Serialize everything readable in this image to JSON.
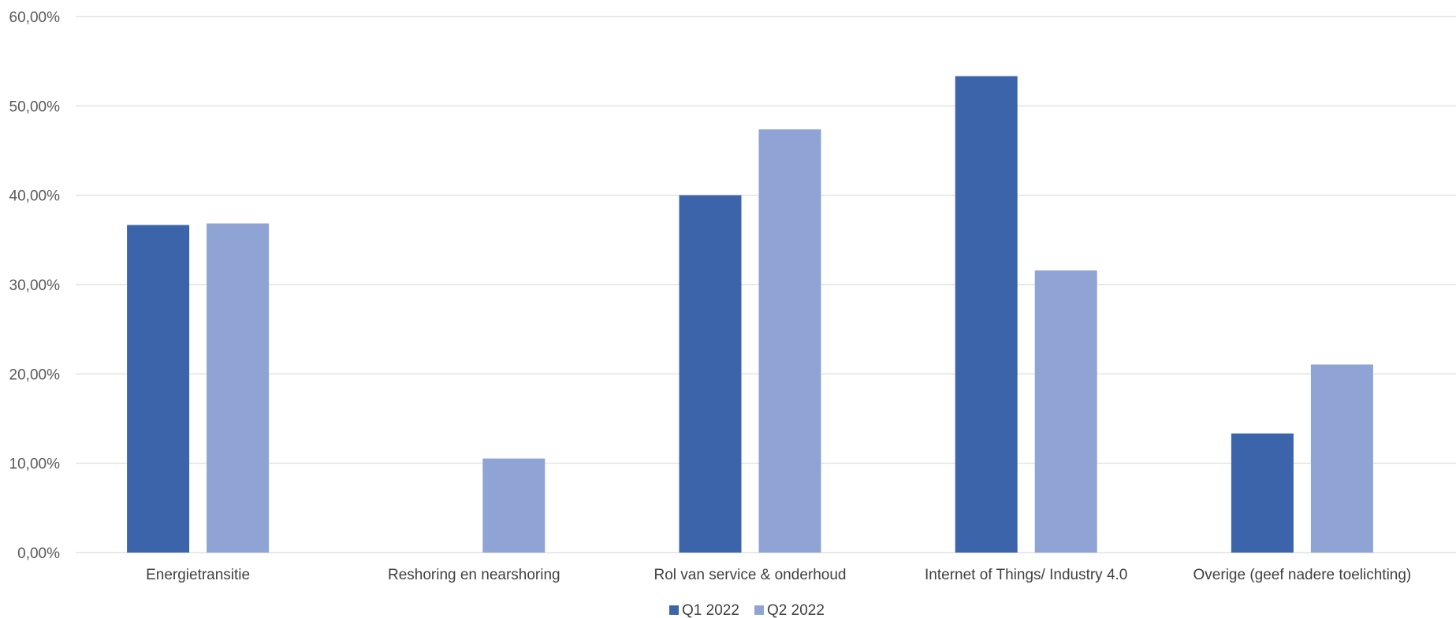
{
  "chart_data": {
    "type": "bar",
    "title": "",
    "xlabel": "",
    "ylabel": "",
    "ylim": [
      0,
      0.6
    ],
    "yticks": [
      {
        "value": 0.0,
        "label": "0,00%"
      },
      {
        "value": 0.1,
        "label": "10,00%"
      },
      {
        "value": 0.2,
        "label": "20,00%"
      },
      {
        "value": 0.3,
        "label": "30,00%"
      },
      {
        "value": 0.4,
        "label": "40,00%"
      },
      {
        "value": 0.5,
        "label": "50,00%"
      },
      {
        "value": 0.6,
        "label": "60,00%"
      }
    ],
    "grid": true,
    "legend_position": "bottom",
    "categories": [
      "Energietransitie",
      "Reshoring en nearshoring",
      "Rol van service & onderhoud",
      "Internet of Things/ Industry 4.0",
      "Overige (geef nadere toelichting)"
    ],
    "series": [
      {
        "name": "Q1 2022",
        "color": "#3c64ab",
        "values": [
          0.3667,
          0.0,
          0.4,
          0.5333,
          0.1333
        ]
      },
      {
        "name": "Q2 2022",
        "color": "#8fa4d4",
        "values": [
          0.3684,
          0.1053,
          0.4737,
          0.3158,
          0.2105
        ]
      }
    ],
    "gridline_color": "#d9d9d9"
  }
}
